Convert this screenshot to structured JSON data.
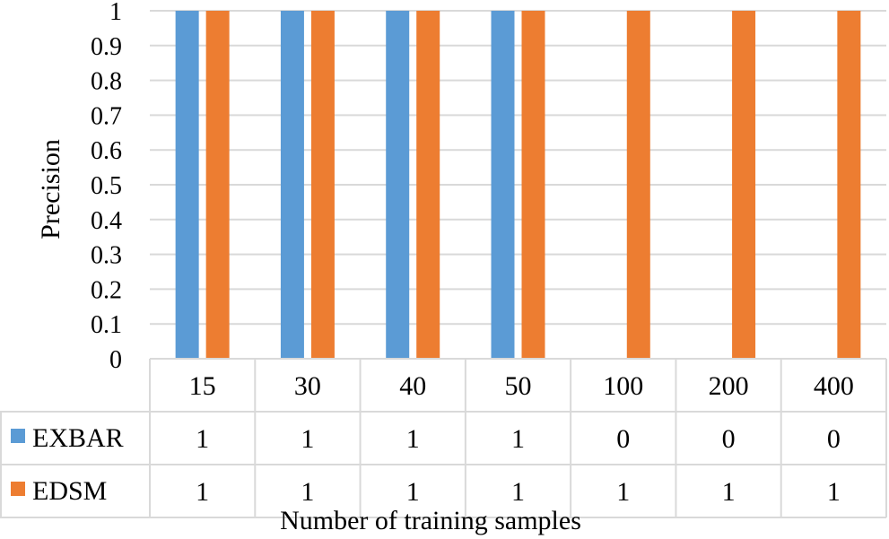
{
  "chart_data": {
    "type": "bar",
    "title": "",
    "categories": [
      "15",
      "30",
      "40",
      "50",
      "100",
      "200",
      "400"
    ],
    "series": [
      {
        "name": "EXBAR",
        "values": [
          1,
          1,
          1,
          1,
          0,
          0,
          0
        ],
        "color": "#5b9bd5"
      },
      {
        "name": "EDSM",
        "values": [
          1,
          1,
          1,
          1,
          1,
          1,
          1
        ],
        "color": "#ed7d31"
      }
    ],
    "xlabel": "Number of training samples",
    "ylabel": "Precision",
    "ylim": [
      0,
      1
    ],
    "yticks": [
      "0",
      "0.1",
      "0.2",
      "0.3",
      "0.4",
      "0.5",
      "0.6",
      "0.7",
      "0.8",
      "0.9",
      "1"
    ],
    "grid": true,
    "legend": "data-table-rows",
    "data_table": {
      "rows": [
        {
          "label": "EXBAR",
          "cells": [
            "1",
            "1",
            "1",
            "1",
            "0",
            "0",
            "0"
          ]
        },
        {
          "label": "EDSM",
          "cells": [
            "1",
            "1",
            "1",
            "1",
            "1",
            "1",
            "1"
          ]
        }
      ]
    }
  }
}
